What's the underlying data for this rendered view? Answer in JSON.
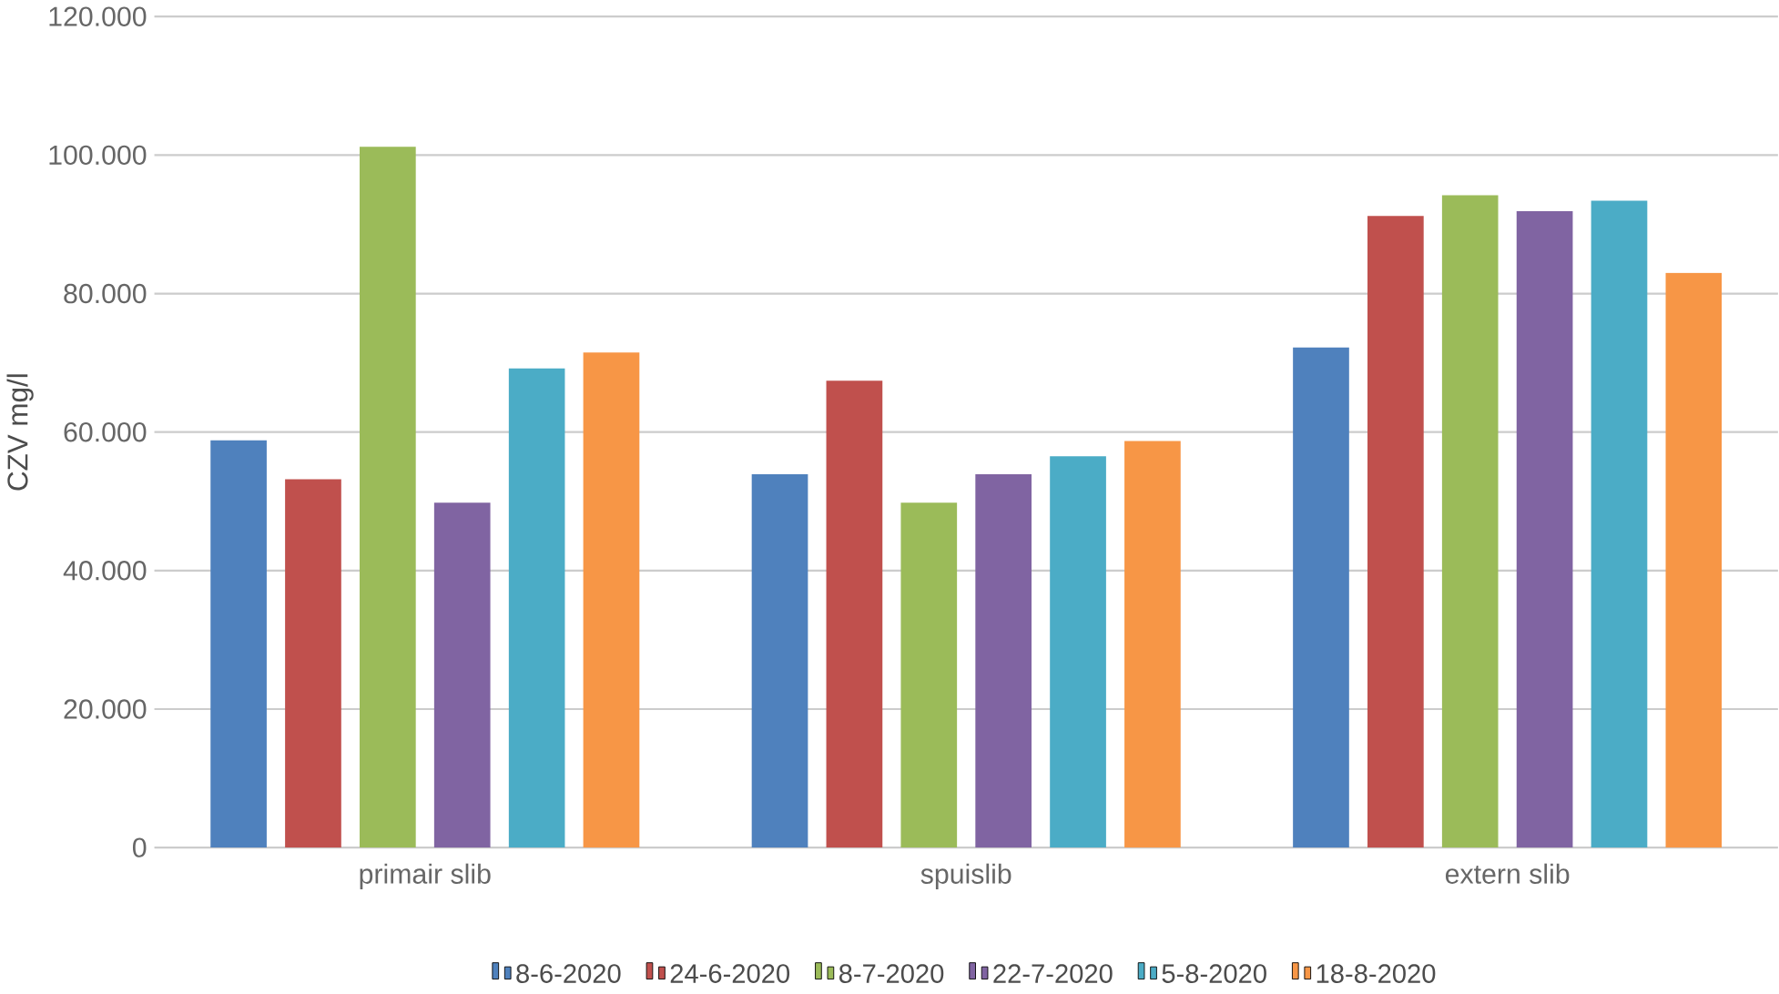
{
  "chart_data": {
    "type": "bar",
    "ylabel": "CZV  mg/l",
    "categories": [
      "primair slib",
      "spuislib",
      "extern slib"
    ],
    "series": [
      {
        "name": "8-6-2020",
        "color": "#4f81bd",
        "values": [
          58800,
          53900,
          72200
        ]
      },
      {
        "name": "24-6-2020",
        "color": "#c0504d",
        "values": [
          53200,
          67400,
          91200
        ]
      },
      {
        "name": "8-7-2020",
        "color": "#9bbb59",
        "values": [
          101200,
          49800,
          94200
        ]
      },
      {
        "name": "22-7-2020",
        "color": "#8064a2",
        "values": [
          49800,
          53900,
          91900
        ]
      },
      {
        "name": "5-8-2020",
        "color": "#4bacc6",
        "values": [
          69200,
          56500,
          93400
        ]
      },
      {
        "name": "18-8-2020",
        "color": "#f79646",
        "values": [
          71500,
          58700,
          83000
        ]
      }
    ],
    "ylim": [
      0,
      120000
    ],
    "yticks": [
      {
        "value": 0,
        "label": "0"
      },
      {
        "value": 20000,
        "label": "20.000"
      },
      {
        "value": 40000,
        "label": "40.000"
      },
      {
        "value": 60000,
        "label": "60.000"
      },
      {
        "value": 80000,
        "label": "80.000"
      },
      {
        "value": 100000,
        "label": "100.000"
      },
      {
        "value": 120000,
        "label": "120.000"
      }
    ],
    "grid": "y",
    "legend": "bottom"
  }
}
